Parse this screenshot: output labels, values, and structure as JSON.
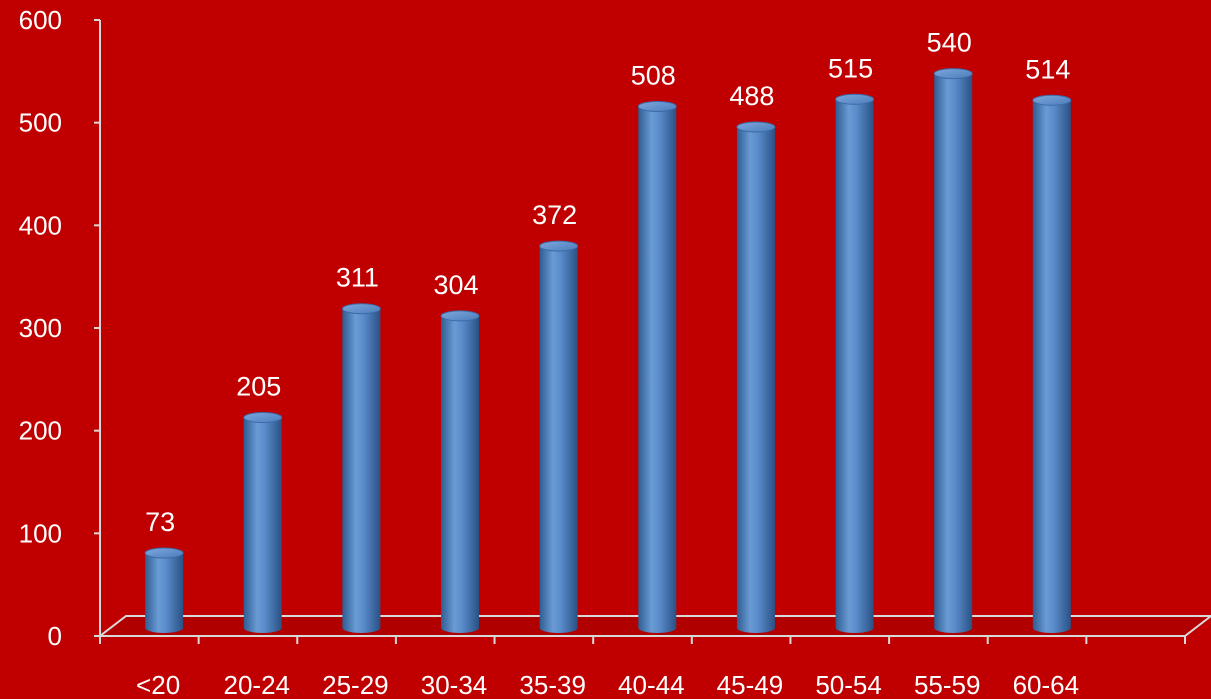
{
  "chart_data": {
    "type": "bar",
    "style": "3d-cylinder",
    "categories": [
      "<20",
      "20-24",
      "25-29",
      "30-34",
      "35-39",
      "40-44",
      "45-49",
      "50-54",
      "55-59",
      "60-64"
    ],
    "series": [
      {
        "values": [
          73,
          205,
          311,
          304,
          372,
          508,
          488,
          515,
          540,
          514
        ]
      }
    ],
    "ylim": [
      0,
      600
    ],
    "yticks": [
      "0",
      "100",
      "200",
      "300",
      "400",
      "500",
      "600"
    ],
    "data_labels": [
      "73",
      "205",
      "311",
      "304",
      "372",
      "508",
      "488",
      "515",
      "540",
      "514"
    ],
    "grid": false,
    "legend": "none",
    "colors": {
      "background": "#c00000",
      "bar": "#4f81bd",
      "text": "#ffffff",
      "axis": "#d9d9d9"
    }
  }
}
